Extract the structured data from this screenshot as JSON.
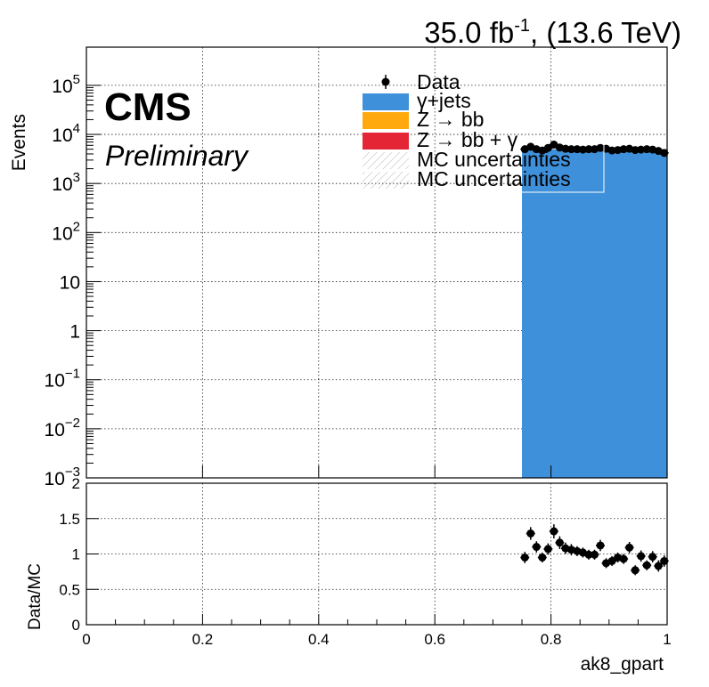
{
  "header": {
    "lumi": "35.0 fb",
    "lumi_exp": "-1",
    "energy": ", (13.6 TeV)"
  },
  "cms": {
    "label": "CMS",
    "sublabel": "Preliminary"
  },
  "legend": {
    "entries": [
      {
        "label": "Data",
        "kind": "marker",
        "color": "#000000"
      },
      {
        "label": "γ+jets",
        "kind": "fill",
        "color": "#3f90da"
      },
      {
        "label": "Z → bb",
        "kind": "fill",
        "color": "#ffa90e"
      },
      {
        "label": "Z → bb + γ",
        "kind": "fill",
        "color": "#e42536"
      },
      {
        "label": "MC uncertainties",
        "kind": "hatch",
        "color": "#b0b0b0"
      },
      {
        "label": "MC uncertainties",
        "kind": "hatch",
        "color": "#b0b0b0"
      }
    ],
    "placement": "top-center"
  },
  "chart_data": [
    {
      "type": "bar",
      "panel": "main",
      "ylabel": "Events",
      "xlim": [
        0,
        1
      ],
      "ylim": [
        0.001,
        600000
      ],
      "log_y": true,
      "grid": true,
      "yticks": [
        {
          "base": "10",
          "exp": "5",
          "value": 100000
        },
        {
          "base": "10",
          "exp": "4",
          "value": 10000
        },
        {
          "base": "10",
          "exp": "3",
          "value": 1000
        },
        {
          "base": "10",
          "exp": "2",
          "value": 100
        },
        {
          "base": "10",
          "exp": "",
          "value": 10
        },
        {
          "base": "1",
          "exp": "",
          "value": 1
        },
        {
          "base": "10",
          "exp": "−1",
          "value": 0.1
        },
        {
          "base": "10",
          "exp": "−2",
          "value": 0.01
        },
        {
          "base": "10",
          "exp": "−3",
          "value": 0.001
        }
      ],
      "series": [
        {
          "name": "γ+jets",
          "color": "#3f90da",
          "bins": [
            {
              "x0": 0.0,
              "x1": 0.75,
              "value": 0.001
            },
            {
              "x0": 0.75,
              "x1": 1.0,
              "value": 5000
            }
          ]
        },
        {
          "name": "Data",
          "color": "#000000",
          "x": [
            0.755,
            0.765,
            0.775,
            0.785,
            0.795,
            0.805,
            0.815,
            0.825,
            0.835,
            0.845,
            0.855,
            0.865,
            0.875,
            0.885,
            0.895,
            0.905,
            0.915,
            0.925,
            0.935,
            0.945,
            0.955,
            0.965,
            0.975,
            0.985,
            0.995
          ],
          "y": [
            5000,
            5600,
            5000,
            4700,
            5300,
            6200,
            5400,
            5100,
            5000,
            5000,
            4900,
            5000,
            5000,
            5300,
            5100,
            4700,
            4800,
            5000,
            5100,
            4800,
            4900,
            5000,
            4900,
            4600,
            4200
          ]
        }
      ]
    },
    {
      "type": "scatter",
      "panel": "ratio",
      "xlabel": "ak8_gpart",
      "ylabel": "Data/MC",
      "xlim": [
        0,
        1
      ],
      "ylim": [
        0,
        2
      ],
      "grid": true,
      "xticks": [
        "0",
        "0.2",
        "0.4",
        "0.6",
        "0.8",
        "1"
      ],
      "yticks": [
        "0",
        "0.5",
        "1",
        "1.5",
        "2"
      ],
      "series": [
        {
          "name": "Data/MC",
          "x": [
            0.755,
            0.765,
            0.775,
            0.785,
            0.795,
            0.805,
            0.815,
            0.825,
            0.835,
            0.845,
            0.855,
            0.865,
            0.875,
            0.885,
            0.895,
            0.905,
            0.915,
            0.925,
            0.935,
            0.945,
            0.955,
            0.965,
            0.975,
            0.985,
            0.995
          ],
          "y": [
            0.95,
            1.29,
            1.1,
            0.95,
            1.07,
            1.32,
            1.16,
            1.08,
            1.06,
            1.04,
            1.02,
            0.99,
            0.99,
            1.12,
            0.87,
            0.9,
            0.95,
            0.93,
            1.09,
            0.77,
            0.97,
            0.84,
            0.96,
            0.83,
            0.9
          ],
          "err": [
            0.08,
            0.09,
            0.08,
            0.07,
            0.08,
            0.1,
            0.09,
            0.08,
            0.08,
            0.07,
            0.07,
            0.07,
            0.07,
            0.08,
            0.07,
            0.07,
            0.07,
            0.07,
            0.08,
            0.07,
            0.08,
            0.07,
            0.08,
            0.08,
            0.08
          ]
        }
      ]
    }
  ]
}
